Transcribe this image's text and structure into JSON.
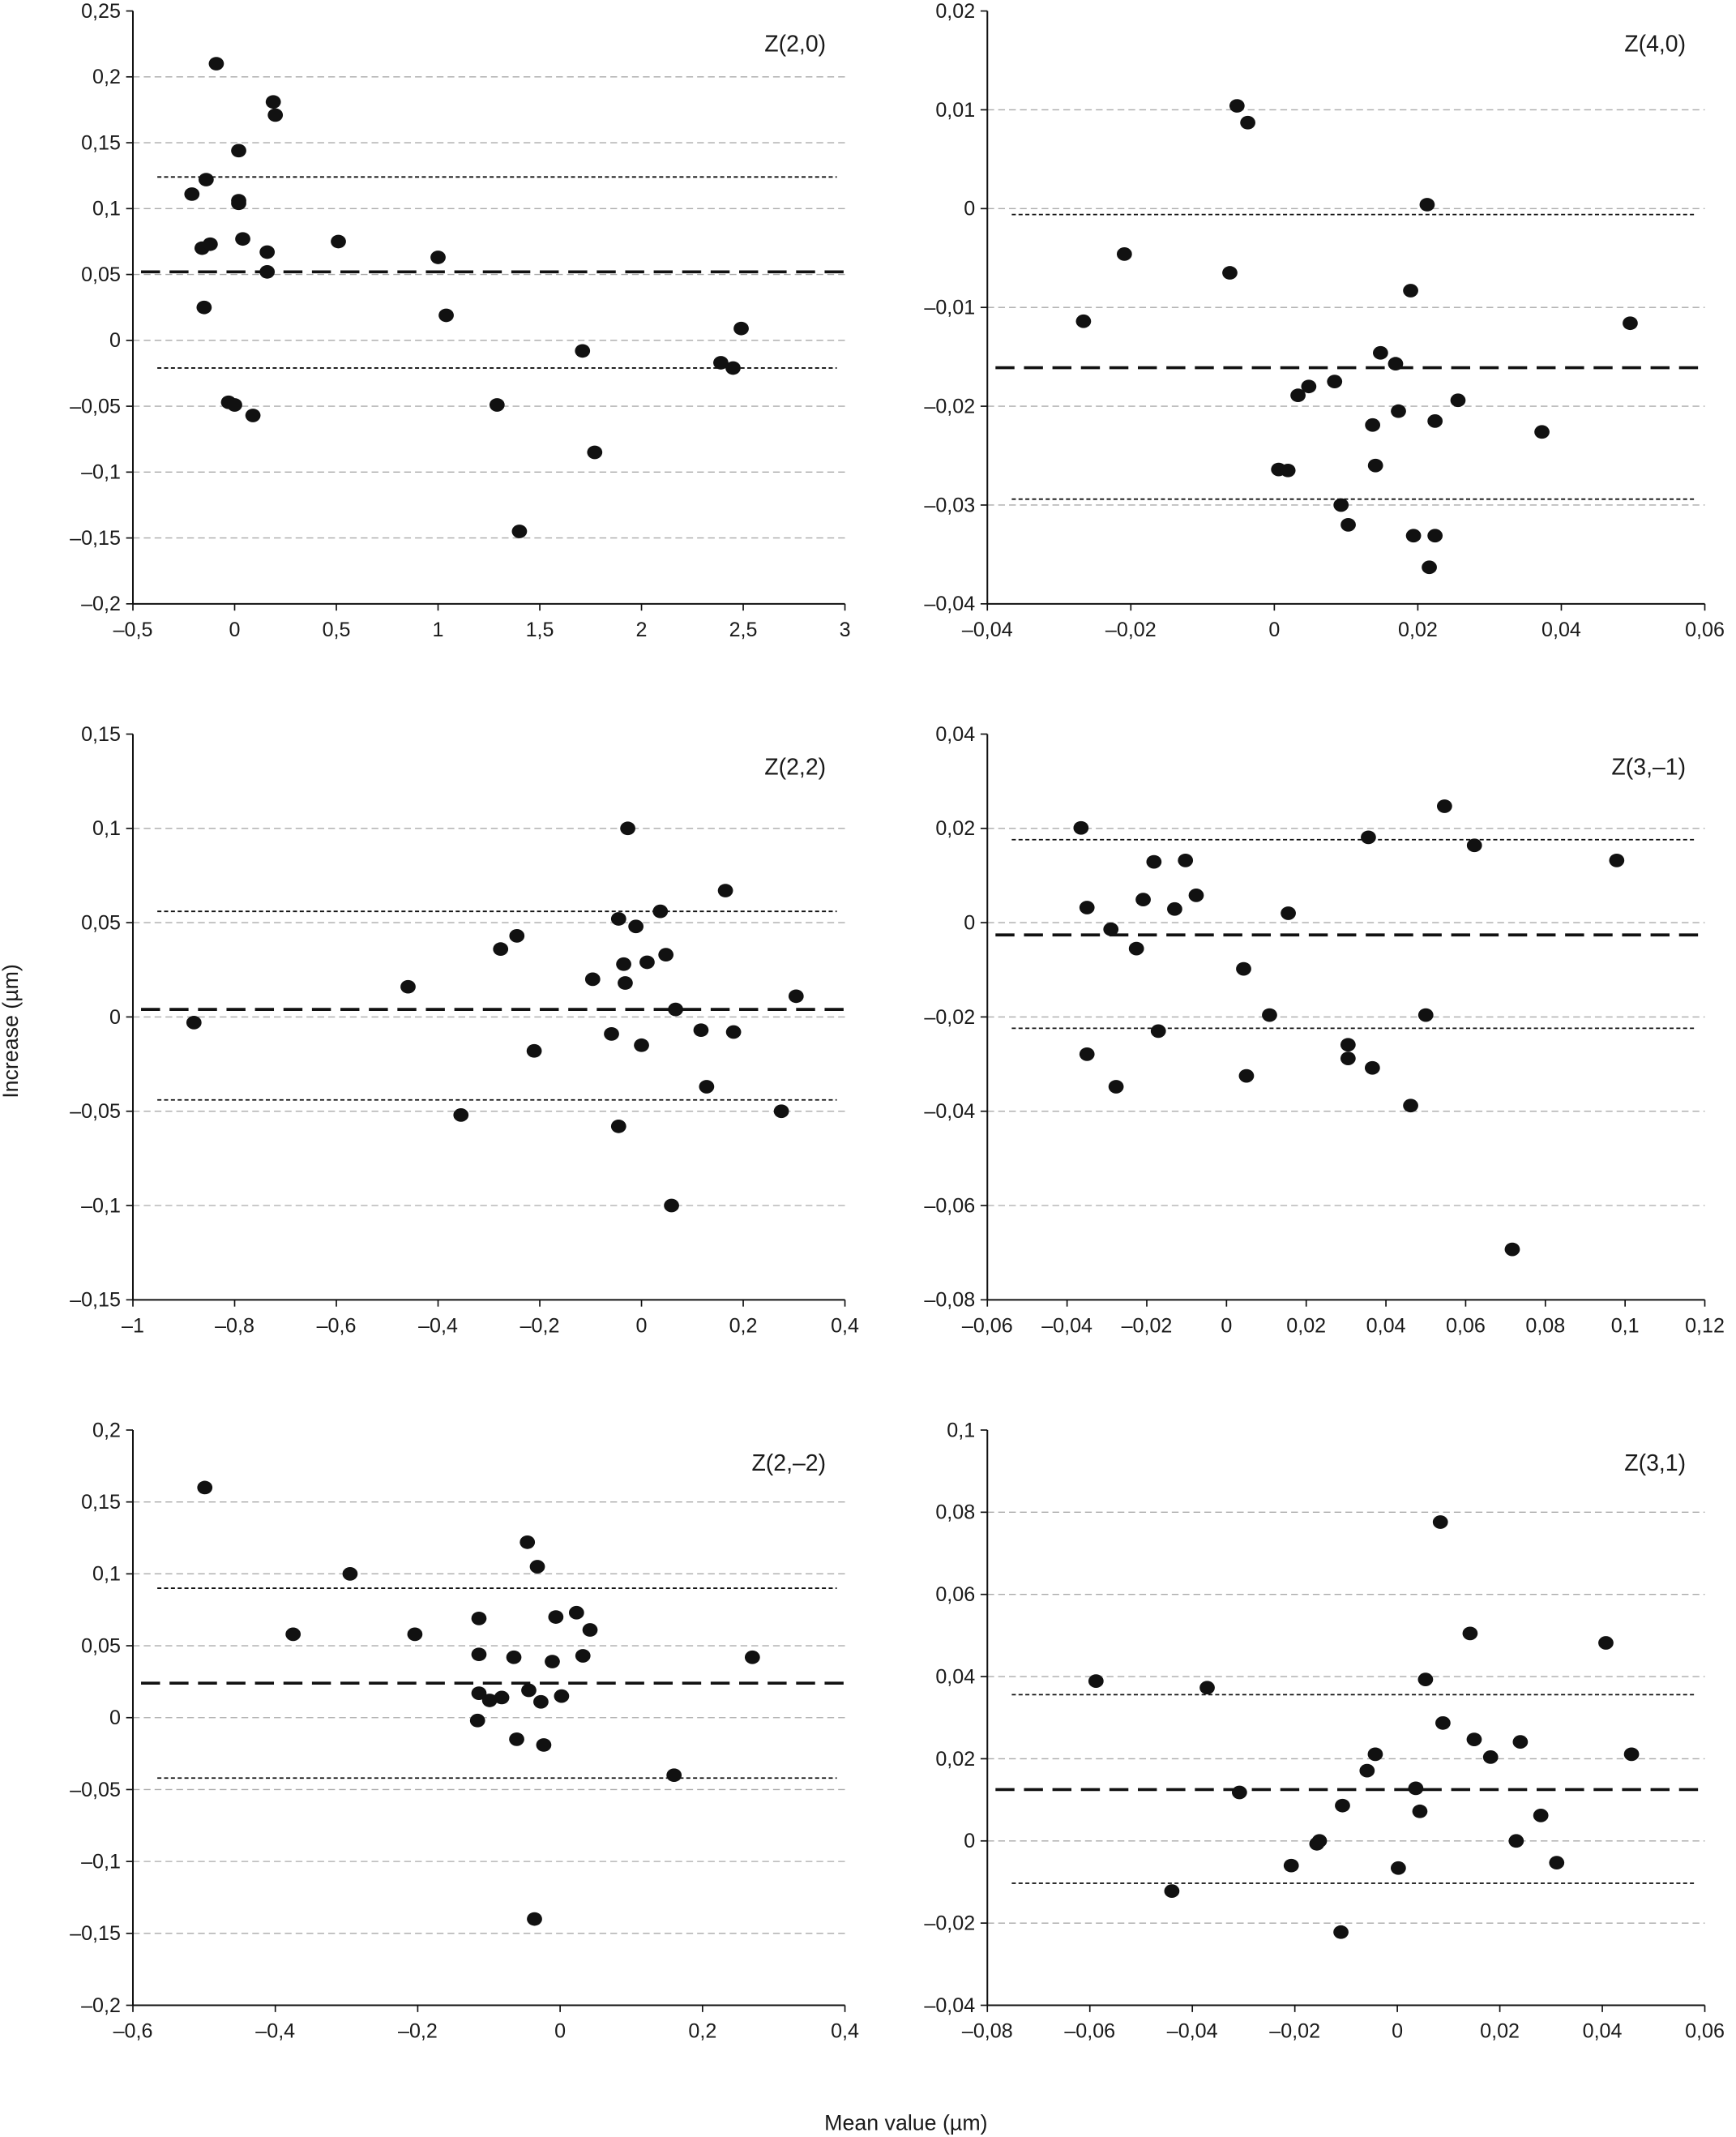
{
  "ylabel": "Increase (µm)",
  "xlabel": "Mean value (µm)",
  "colors": {
    "points": "#111111",
    "grid": "#aaaaaa",
    "lines": "#111111",
    "axes": "#111111"
  },
  "chart_data": [
    {
      "type": "scatter",
      "title": "Z(2,0)",
      "grid": true,
      "xlim": [
        -0.5,
        3
      ],
      "ylim": [
        -0.2,
        0.25
      ],
      "xticks": [
        -0.5,
        0,
        0.5,
        1,
        1.5,
        2,
        2.5,
        3
      ],
      "xtick_labels": [
        "–0,5",
        "0",
        "0,5",
        "1",
        "1,5",
        "2",
        "2,5",
        "3"
      ],
      "yticks": [
        -0.2,
        -0.15,
        -0.1,
        -0.05,
        0,
        0.05,
        0.1,
        0.15,
        0.2,
        0.25
      ],
      "ytick_labels": [
        "–0,2",
        "–0,15",
        "–0,1",
        "–0,05",
        "0",
        "0,05",
        "0,1",
        "0,15",
        "0,2",
        "0,25"
      ],
      "mean_line": 0.052,
      "upper_limit": 0.124,
      "lower_limit": -0.021,
      "points": [
        [
          -0.09,
          0.21
        ],
        [
          -0.21,
          0.111
        ],
        [
          -0.14,
          0.122
        ],
        [
          0.02,
          0.144
        ],
        [
          0.02,
          0.106
        ],
        [
          0.02,
          0.104
        ],
        [
          0.19,
          0.181
        ],
        [
          0.2,
          0.171
        ],
        [
          -0.16,
          0.07
        ],
        [
          -0.12,
          0.073
        ],
        [
          0.04,
          0.077
        ],
        [
          0.16,
          0.067
        ],
        [
          0.16,
          0.052
        ],
        [
          -0.15,
          0.025
        ],
        [
          0.51,
          0.075
        ],
        [
          1.0,
          0.063
        ],
        [
          1.04,
          0.019
        ],
        [
          -0.03,
          -0.047
        ],
        [
          0,
          -0.049
        ],
        [
          0.09,
          -0.057
        ],
        [
          1.29,
          -0.049
        ],
        [
          1.71,
          -0.008
        ],
        [
          1.77,
          -0.085
        ],
        [
          1.4,
          -0.145
        ],
        [
          2.39,
          -0.017
        ],
        [
          2.45,
          -0.021
        ],
        [
          2.49,
          0.009
        ]
      ]
    },
    {
      "type": "scatter",
      "title": "Z(4,0)",
      "grid": true,
      "xlim": [
        -0.04,
        0.06
      ],
      "ylim": [
        -0.04,
        0.02
      ],
      "xticks": [
        -0.04,
        -0.02,
        0,
        0.02,
        0.04,
        0.06
      ],
      "xtick_labels": [
        "–0,04",
        "–0,02",
        "0",
        "0,02",
        "0,04",
        "0,06"
      ],
      "yticks": [
        -0.04,
        -0.03,
        -0.02,
        -0.01,
        0,
        0.01,
        0.02
      ],
      "ytick_labels": [
        "–0,04",
        "–0,03",
        "–0,02",
        "–0,01",
        "0",
        "0,01",
        "0,02"
      ],
      "mean_line": -0.0161,
      "upper_limit": -0.0006,
      "lower_limit": -0.0294,
      "points": [
        [
          -0.0052,
          0.0104
        ],
        [
          -0.0037,
          0.0087
        ],
        [
          -0.0266,
          -0.0114
        ],
        [
          -0.0209,
          -0.0046
        ],
        [
          -0.0062,
          -0.0065
        ],
        [
          0.0213,
          0.0004
        ],
        [
          0.019,
          -0.0083
        ],
        [
          0.0148,
          -0.0146
        ],
        [
          0.0169,
          -0.0157
        ],
        [
          0.0173,
          -0.0205
        ],
        [
          0.0256,
          -0.0194
        ],
        [
          0.0224,
          -0.0215
        ],
        [
          0.0048,
          -0.018
        ],
        [
          0.0033,
          -0.0189
        ],
        [
          0.0084,
          -0.0175
        ],
        [
          0.0137,
          -0.0219
        ],
        [
          0.0141,
          -0.026
        ],
        [
          0.0006,
          -0.0264
        ],
        [
          0.0019,
          -0.0265
        ],
        [
          0.0093,
          -0.03
        ],
        [
          0.0103,
          -0.032
        ],
        [
          0.0194,
          -0.0331
        ],
        [
          0.0224,
          -0.0331
        ],
        [
          0.0216,
          -0.0363
        ],
        [
          0.0373,
          -0.0226
        ],
        [
          0.0496,
          -0.0116
        ]
      ]
    },
    {
      "type": "scatter",
      "title": "Z(2,2)",
      "grid": true,
      "xlim": [
        -1,
        0.4
      ],
      "ylim": [
        -0.15,
        0.15
      ],
      "xticks": [
        -1,
        -0.8,
        -0.6,
        -0.4,
        -0.2,
        0,
        0.2,
        0.4
      ],
      "xtick_labels": [
        "–1",
        "–0,8",
        "–0,6",
        "–0,4",
        "–0,2",
        "0",
        "0,2",
        "0,4"
      ],
      "yticks": [
        -0.15,
        -0.1,
        -0.05,
        0,
        0.05,
        0.1,
        0.15
      ],
      "ytick_labels": [
        "–0,15",
        "–0,1",
        "–0,05",
        "0",
        "0,05",
        "0,1",
        "0,15"
      ],
      "mean_line": 0.004,
      "upper_limit": 0.056,
      "lower_limit": -0.044,
      "points": [
        [
          -0.88,
          -0.003
        ],
        [
          -0.459,
          0.016
        ],
        [
          -0.277,
          0.036
        ],
        [
          -0.245,
          0.043
        ],
        [
          -0.355,
          -0.052
        ],
        [
          -0.211,
          -0.018
        ],
        [
          -0.027,
          0.1
        ],
        [
          -0.045,
          0.052
        ],
        [
          -0.011,
          0.048
        ],
        [
          -0.096,
          0.02
        ],
        [
          -0.035,
          0.028
        ],
        [
          -0.032,
          0.018
        ],
        [
          0.011,
          0.029
        ],
        [
          0.037,
          0.056
        ],
        [
          0.048,
          0.033
        ],
        [
          0.067,
          0.004
        ],
        [
          0.165,
          0.067
        ],
        [
          -0.059,
          -0.009
        ],
        [
          0,
          -0.015
        ],
        [
          0.117,
          -0.007
        ],
        [
          0.181,
          -0.008
        ],
        [
          0.128,
          -0.037
        ],
        [
          -0.045,
          -0.058
        ],
        [
          0.059,
          -0.1
        ],
        [
          0.275,
          -0.05
        ],
        [
          0.304,
          0.011
        ]
      ]
    },
    {
      "type": "scatter",
      "title": "Z(3,–1)",
      "grid": true,
      "xlim": [
        -0.06,
        0.12
      ],
      "ylim": [
        -0.08,
        0.04
      ],
      "xticks": [
        -0.06,
        -0.04,
        -0.02,
        0,
        0.02,
        0.04,
        0.06,
        0.08,
        0.1,
        0.12
      ],
      "xtick_labels": [
        "–0,06",
        "–0,04",
        "–0,02",
        "0",
        "0,02",
        "0,04",
        "0,06",
        "0,08",
        "0,1",
        "0,12"
      ],
      "yticks": [
        -0.08,
        -0.06,
        -0.04,
        -0.02,
        0,
        0.02,
        0.04
      ],
      "ytick_labels": [
        "–0,08",
        "–0,06",
        "–0,04",
        "–0,02",
        "0",
        "0,02",
        "0,04"
      ],
      "mean_line": -0.0026,
      "upper_limit": 0.0176,
      "lower_limit": -0.0224,
      "points": [
        [
          -0.0365,
          0.0201
        ],
        [
          -0.035,
          0.0032
        ],
        [
          -0.029,
          -0.0014
        ],
        [
          -0.0226,
          -0.0055
        ],
        [
          -0.0209,
          0.0049
        ],
        [
          -0.0182,
          0.0129
        ],
        [
          -0.013,
          0.0029
        ],
        [
          -0.0103,
          0.0132
        ],
        [
          -0.0076,
          0.0058
        ],
        [
          0.0155,
          0.002
        ],
        [
          -0.035,
          -0.0279
        ],
        [
          -0.0277,
          -0.0348
        ],
        [
          -0.0171,
          -0.023
        ],
        [
          0.0043,
          -0.0098
        ],
        [
          0.005,
          -0.0325
        ],
        [
          0.0108,
          -0.0196
        ],
        [
          0.0305,
          -0.0259
        ],
        [
          0.0305,
          -0.0288
        ],
        [
          0.0366,
          -0.0308
        ],
        [
          0.0356,
          0.0181
        ],
        [
          0.0462,
          -0.0388
        ],
        [
          0.05,
          -0.0196
        ],
        [
          0.0547,
          0.0247
        ],
        [
          0.0622,
          0.0164
        ],
        [
          0.0717,
          -0.0693
        ],
        [
          0.0979,
          0.0132
        ]
      ]
    },
    {
      "type": "scatter",
      "title": "Z(2,–2)",
      "grid": true,
      "xlim": [
        -0.6,
        0.4
      ],
      "ylim": [
        -0.2,
        0.2
      ],
      "xticks": [
        -0.6,
        -0.4,
        -0.2,
        0,
        0.2,
        0.4
      ],
      "xtick_labels": [
        "–0,6",
        "–0,4",
        "–0,2",
        "0",
        "0,2",
        "0,4"
      ],
      "yticks": [
        -0.2,
        -0.15,
        -0.1,
        -0.05,
        0,
        0.05,
        0.1,
        0.15,
        0.2
      ],
      "ytick_labels": [
        "–0,2",
        "–0,15",
        "–0,1",
        "–0,05",
        "0",
        "0,05",
        "0,1",
        "0,15",
        "0,2"
      ],
      "mean_line": 0.024,
      "upper_limit": 0.09,
      "lower_limit": -0.042,
      "points": [
        [
          -0.499,
          0.16
        ],
        [
          -0.295,
          0.1
        ],
        [
          -0.375,
          0.058
        ],
        [
          -0.204,
          0.058
        ],
        [
          -0.114,
          0.069
        ],
        [
          -0.114,
          0.044
        ],
        [
          -0.065,
          0.042
        ],
        [
          -0.046,
          0.122
        ],
        [
          -0.032,
          0.105
        ],
        [
          -0.006,
          0.07
        ],
        [
          0.023,
          0.073
        ],
        [
          0.042,
          0.061
        ],
        [
          0.032,
          0.043
        ],
        [
          -0.011,
          0.039
        ],
        [
          -0.114,
          0.017
        ],
        [
          -0.099,
          0.012
        ],
        [
          -0.082,
          0.014
        ],
        [
          -0.044,
          0.019
        ],
        [
          -0.027,
          0.011
        ],
        [
          0.002,
          0.015
        ],
        [
          -0.116,
          -0.002
        ],
        [
          -0.061,
          -0.015
        ],
        [
          -0.023,
          -0.019
        ],
        [
          0.16,
          -0.04
        ],
        [
          0.27,
          0.042
        ],
        [
          -0.036,
          -0.14
        ]
      ]
    },
    {
      "type": "scatter",
      "title": "Z(3,1)",
      "grid": true,
      "xlim": [
        -0.08,
        0.06
      ],
      "ylim": [
        -0.04,
        0.1
      ],
      "xticks": [
        -0.08,
        -0.06,
        -0.04,
        -0.02,
        0,
        0.02,
        0.04,
        0.06
      ],
      "xtick_labels": [
        "–0,08",
        "–0,06",
        "–0,04",
        "–0,02",
        "0",
        "0,02",
        "0,04",
        "0,06"
      ],
      "yticks": [
        -0.04,
        -0.02,
        0,
        0.02,
        0.04,
        0.06,
        0.08,
        0.1
      ],
      "ytick_labels": [
        "–0,04",
        "–0,02",
        "0",
        "0,02",
        "0,04",
        "0,06",
        "0,08",
        "0,1"
      ],
      "mean_line": 0.0125,
      "upper_limit": 0.0356,
      "lower_limit": -0.0103,
      "points": [
        [
          -0.0588,
          0.0389
        ],
        [
          -0.0371,
          0.0373
        ],
        [
          -0.0308,
          0.0118
        ],
        [
          -0.044,
          -0.0122
        ],
        [
          -0.0207,
          -0.006
        ],
        [
          -0.0157,
          -0.0007
        ],
        [
          -0.0152,
          0.0
        ],
        [
          -0.0107,
          0.0086
        ],
        [
          -0.011,
          -0.0222
        ],
        [
          -0.0059,
          0.0171
        ],
        [
          -0.0043,
          0.0211
        ],
        [
          0.0002,
          -0.0066
        ],
        [
          0.0036,
          0.0128
        ],
        [
          0.0044,
          0.0072
        ],
        [
          0.0055,
          0.0393
        ],
        [
          0.0084,
          0.0776
        ],
        [
          0.0089,
          0.0287
        ],
        [
          0.0142,
          0.0505
        ],
        [
          0.015,
          0.0247
        ],
        [
          0.0182,
          0.0204
        ],
        [
          0.0232,
          0.0
        ],
        [
          0.024,
          0.0241
        ],
        [
          0.028,
          0.0062
        ],
        [
          0.0311,
          -0.0053
        ],
        [
          0.0407,
          0.0482
        ],
        [
          0.0457,
          0.0211
        ]
      ]
    }
  ]
}
